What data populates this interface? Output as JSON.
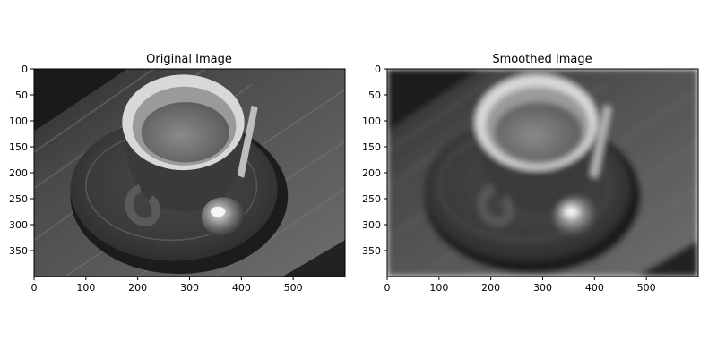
{
  "panels": [
    {
      "title": "Original Image",
      "blur_std": 0,
      "x_ticks": [
        "0",
        "100",
        "200",
        "300",
        "400",
        "500"
      ],
      "y_ticks": [
        "0",
        "50",
        "100",
        "150",
        "200",
        "250",
        "300",
        "350"
      ]
    },
    {
      "title": "Smoothed Image",
      "blur_std": 6,
      "x_ticks": [
        "0",
        "100",
        "200",
        "300",
        "400",
        "500"
      ],
      "y_ticks": [
        "0",
        "50",
        "100",
        "150",
        "200",
        "250",
        "300",
        "350"
      ]
    }
  ],
  "colormap": "gray",
  "image_description_icon": "grayscale-espresso-cup-photo"
}
